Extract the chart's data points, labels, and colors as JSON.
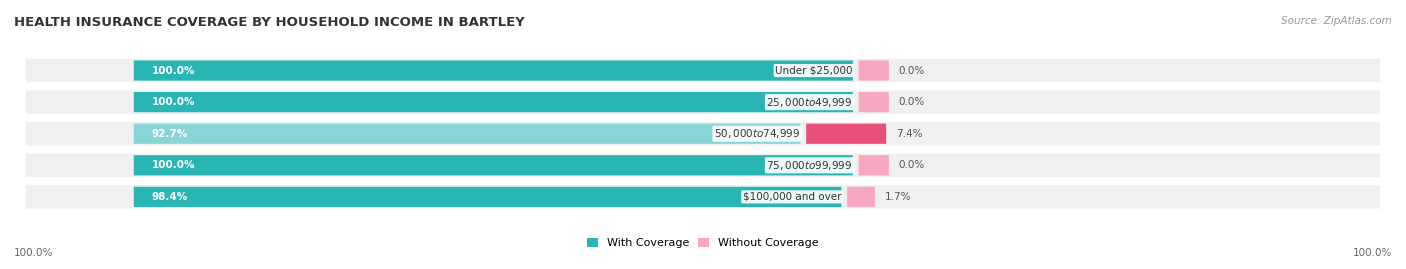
{
  "title": "HEALTH INSURANCE COVERAGE BY HOUSEHOLD INCOME IN BARTLEY",
  "source": "Source: ZipAtlas.com",
  "categories": [
    "Under $25,000",
    "$25,000 to $49,999",
    "$50,000 to $74,999",
    "$75,000 to $99,999",
    "$100,000 and over"
  ],
  "with_coverage": [
    100.0,
    100.0,
    92.7,
    100.0,
    98.4
  ],
  "without_coverage": [
    0.0,
    0.0,
    7.4,
    0.0,
    1.7
  ],
  "coverage_color": "#2ab5b5",
  "coverage_color_light": "#88d5d8",
  "no_coverage_color_light": "#f7a8c0",
  "no_coverage_color_dark": "#e8507a",
  "bar_bg_color": "#e8e8e8",
  "row_bg_color": "#f0f0f0",
  "background_color": "#ffffff",
  "legend_coverage": "With Coverage",
  "legend_no_coverage": "Without Coverage",
  "bottom_left_label": "100.0%",
  "bottom_right_label": "100.0%",
  "total_bar_width": 100.0,
  "pink_bar_scale": 0.08,
  "cat_label_fontsize": 7.5,
  "pct_label_fontsize": 7.5,
  "title_fontsize": 9.5,
  "source_fontsize": 7.5,
  "legend_fontsize": 8.0
}
